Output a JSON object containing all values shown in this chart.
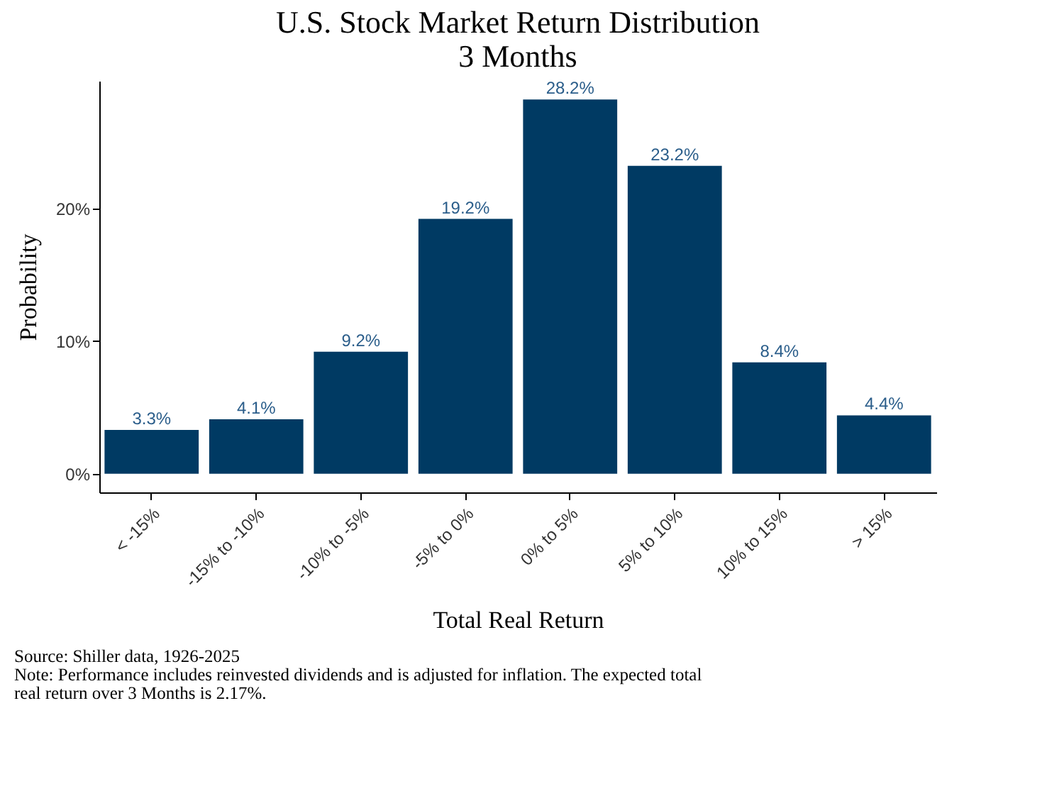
{
  "chart_data": {
    "type": "bar",
    "title": "U.S. Stock Market Return Distribution\n3 Months",
    "xlabel": "Total Real Return",
    "ylabel": "Probability",
    "categories": [
      "< -15%",
      "-15% to -10%",
      "-10% to -5%",
      "-5% to 0%",
      "0% to 5%",
      "5% to 10%",
      "10% to 15%",
      "> 15%"
    ],
    "values": [
      3.3,
      4.1,
      9.2,
      19.2,
      28.2,
      23.2,
      8.4,
      4.4
    ],
    "value_labels": [
      "3.3%",
      "4.1%",
      "9.2%",
      "19.2%",
      "28.2%",
      "23.2%",
      "8.4%",
      "4.4%"
    ],
    "color": "#003a63",
    "ylim": [
      -1.4,
      29.6
    ],
    "yticks": [
      {
        "value": 0,
        "label": "0%"
      },
      {
        "value": 10,
        "label": "10%"
      },
      {
        "value": 20,
        "label": "20%"
      }
    ],
    "grid": false,
    "annotations": [
      "Source: Shiller data, 1926-2025",
      "Note: Performance includes reinvested dividends and is adjusted for inflation. The expected total real return over 3 Months is 2.17%."
    ]
  }
}
